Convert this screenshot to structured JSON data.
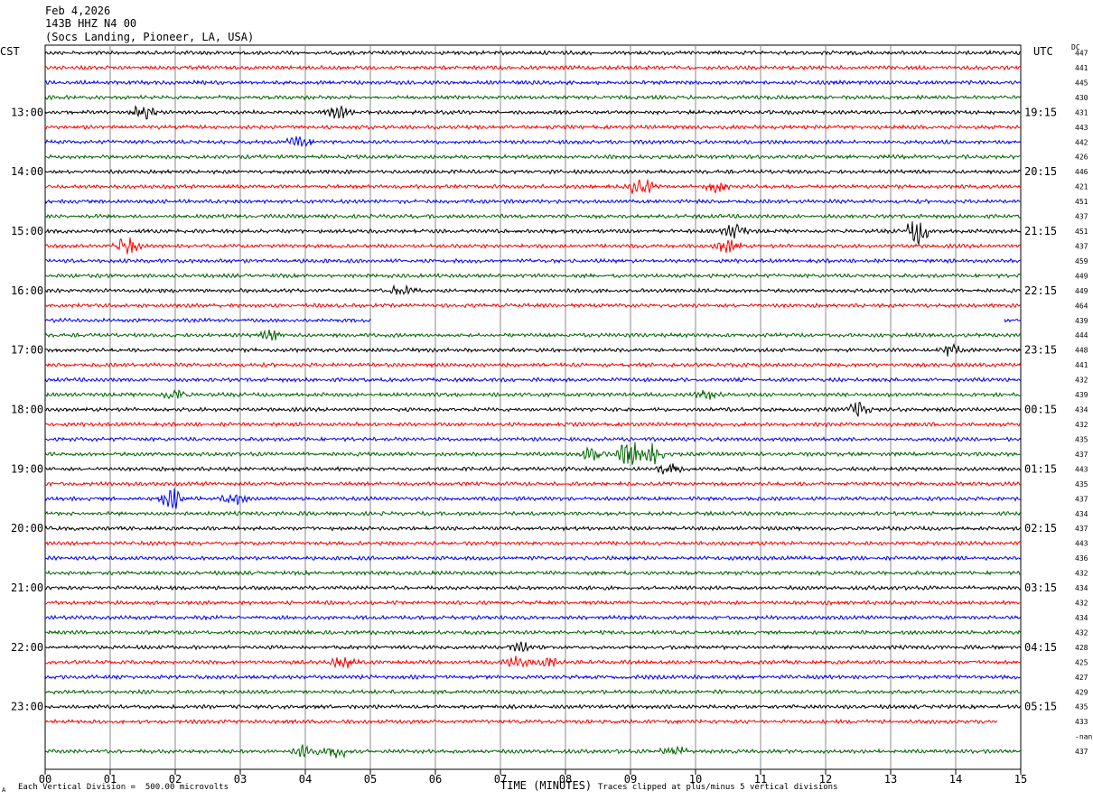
{
  "header": {
    "date": "Feb 4,2026",
    "station": "143B HHZ N4 00",
    "location": "(Socs Landing, Pioneer, LA, USA)"
  },
  "labels": {
    "left_tz": "CST",
    "right_tz": "UTC",
    "dc_header": "DC",
    "x_axis_title": "TIME (MINUTES)",
    "scale_note": "Each Vertical Division =  500.00 microvolts",
    "clip_note": "Traces clipped at plus/minus 5 vertical divisions",
    "corner_mark": "A"
  },
  "chart_data": {
    "type": "line",
    "xlabel": "TIME (MINUTES)",
    "xlim": [
      0,
      15
    ],
    "x_ticks": [
      "00",
      "01",
      "02",
      "03",
      "04",
      "05",
      "06",
      "07",
      "08",
      "09",
      "10",
      "11",
      "12",
      "13",
      "14",
      "15"
    ],
    "rows_per_hour": 4,
    "row_colors": [
      "#000000",
      "#ff0000",
      "#0000ff",
      "#006400"
    ],
    "left_hour_labels": [
      "13:00",
      "14:00",
      "15:00",
      "16:00",
      "17:00",
      "18:00",
      "19:00",
      "20:00",
      "21:00",
      "22:00",
      "23:00"
    ],
    "right_hour_labels": [
      "19:15",
      "20:15",
      "21:15",
      "22:15",
      "23:15",
      "00:15",
      "01:15",
      "02:15",
      "03:15",
      "04:15",
      "05:15"
    ],
    "dc_values": [
      "447",
      "441",
      "445",
      "430",
      "431",
      "443",
      "442",
      "426",
      "446",
      "421",
      "451",
      "437",
      "451",
      "437",
      "459",
      "449",
      "449",
      "464",
      "439",
      "444",
      "448",
      "441",
      "432",
      "439",
      "434",
      "432",
      "435",
      "437",
      "443",
      "435",
      "437",
      "434",
      "437",
      "443",
      "436",
      "432",
      "434",
      "432",
      "434",
      "432",
      "428",
      "425",
      "427",
      "429",
      "435",
      "433",
      "-nan",
      "437"
    ],
    "trace_segments": [
      {
        "row": 18,
        "x_start": 0,
        "x_end": 5.0
      },
      {
        "row": 18,
        "x_start": 14.75,
        "x_end": 15
      },
      {
        "row": 46,
        "x_start": 0,
        "x_end": 0
      },
      {
        "row": 45,
        "x_start": 0,
        "x_end": 14.65
      }
    ],
    "events": [
      {
        "row": 4,
        "x": 1.5,
        "amp": 2.0
      },
      {
        "row": 4,
        "x": 4.5,
        "amp": 1.6
      },
      {
        "row": 6,
        "x": 3.9,
        "amp": 1.5
      },
      {
        "row": 9,
        "x": 9.15,
        "amp": 2.5
      },
      {
        "row": 9,
        "x": 10.35,
        "amp": 1.6
      },
      {
        "row": 12,
        "x": 10.6,
        "amp": 2.0
      },
      {
        "row": 12,
        "x": 13.4,
        "amp": 3.5
      },
      {
        "row": 13,
        "x": 1.25,
        "amp": 2.5
      },
      {
        "row": 13,
        "x": 10.5,
        "amp": 2.0
      },
      {
        "row": 16,
        "x": 5.5,
        "amp": 1.5
      },
      {
        "row": 19,
        "x": 3.5,
        "amp": 1.5
      },
      {
        "row": 20,
        "x": 13.9,
        "amp": 1.6
      },
      {
        "row": 23,
        "x": 2.0,
        "amp": 1.5
      },
      {
        "row": 23,
        "x": 10.2,
        "amp": 1.4
      },
      {
        "row": 24,
        "x": 12.5,
        "amp": 1.8
      },
      {
        "row": 27,
        "x": 8.4,
        "amp": 2.0
      },
      {
        "row": 27,
        "x": 9.0,
        "amp": 4.5
      },
      {
        "row": 27,
        "x": 9.3,
        "amp": 3.0
      },
      {
        "row": 28,
        "x": 9.6,
        "amp": 1.5
      },
      {
        "row": 30,
        "x": 1.97,
        "amp": 3.0
      },
      {
        "row": 30,
        "x": 2.9,
        "amp": 1.5
      },
      {
        "row": 40,
        "x": 7.3,
        "amp": 1.3
      },
      {
        "row": 41,
        "x": 4.6,
        "amp": 1.6
      },
      {
        "row": 41,
        "x": 7.25,
        "amp": 1.6
      },
      {
        "row": 41,
        "x": 7.7,
        "amp": 1.5
      },
      {
        "row": 47,
        "x": 4.5,
        "amp": 2.3
      },
      {
        "row": 47,
        "x": 4.0,
        "amp": 1.5
      },
      {
        "row": 47,
        "x": 9.65,
        "amp": 1.8
      }
    ]
  }
}
